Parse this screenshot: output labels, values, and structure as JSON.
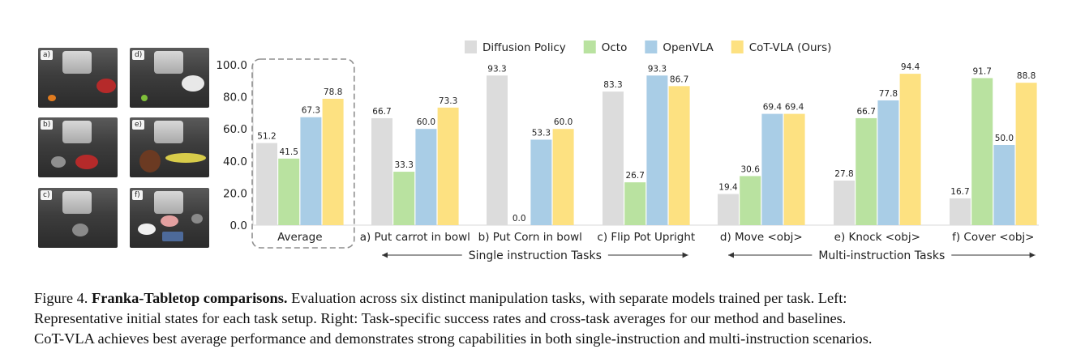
{
  "thumbnails": [
    {
      "label": "a)"
    },
    {
      "label": "d)"
    },
    {
      "label": "b)"
    },
    {
      "label": "e)"
    },
    {
      "label": "c)"
    },
    {
      "label": "f)"
    }
  ],
  "colors": {
    "Diffusion Policy": "#dcdcdc",
    "Octo": "#b9e2a0",
    "OpenVLA": "#a9cde6",
    "CoT-VLA (Ours)": "#fde181"
  },
  "chart_data": {
    "type": "bar",
    "ylim": [
      0,
      100
    ],
    "yticks": [
      "0.0",
      "20.0",
      "40.0",
      "60.0",
      "80.0",
      "100.0"
    ],
    "categories": [
      "Average",
      "a) Put carrot in bowl",
      "b) Put Corn in bowl",
      "c) Flip Pot Upright",
      "d) Move <obj>",
      "e) Knock <obj>",
      "f) Cover <obj>"
    ],
    "series": [
      {
        "name": "Diffusion Policy",
        "values": [
          51.2,
          66.7,
          93.3,
          83.3,
          19.4,
          27.8,
          16.7
        ],
        "labels": [
          "51.2",
          "66.7",
          "93.3",
          "83.3",
          "19.4",
          "27.8",
          "16.7"
        ]
      },
      {
        "name": "Octo",
        "values": [
          41.5,
          33.3,
          0.0,
          26.7,
          30.6,
          66.7,
          91.7
        ],
        "labels": [
          "41.5",
          "33.3",
          "0.0",
          "26.7",
          "30.6",
          "66.7",
          "91.7"
        ]
      },
      {
        "name": "OpenVLA",
        "values": [
          67.3,
          60.0,
          53.3,
          93.3,
          69.4,
          77.8,
          50.0
        ],
        "labels": [
          "67.3",
          "60.0",
          "53.3",
          "93.3",
          "69.4",
          "77.8",
          "50.0"
        ]
      },
      {
        "name": "CoT-VLA (Ours)",
        "values": [
          78.8,
          73.3,
          60.0,
          86.7,
          69.4,
          94.4,
          88.8
        ],
        "labels": [
          "78.8",
          "73.3",
          "60.0",
          "86.7",
          "69.4",
          "94.4",
          "88.8"
        ]
      }
    ],
    "group_arrows": [
      {
        "label": "Single instruction Tasks",
        "from_category": 1,
        "to_category": 3
      },
      {
        "label": "Multi-instruction Tasks",
        "from_category": 4,
        "to_category": 6
      }
    ],
    "legend_position": "top"
  },
  "caption": {
    "prefix": "Figure 4.",
    "bold": "Franka-Tabletop comparisons.",
    "line1_rest": "Evaluation across six distinct manipulation tasks, with separate models trained per task. Left:",
    "line2": "Representative initial states for each task setup. Right: Task-specific success rates and cross-task averages for our method and baselines.",
    "line3": "CoT-VLA achieves best average performance and demonstrates strong capabilities in both single-instruction and multi-instruction scenarios."
  }
}
